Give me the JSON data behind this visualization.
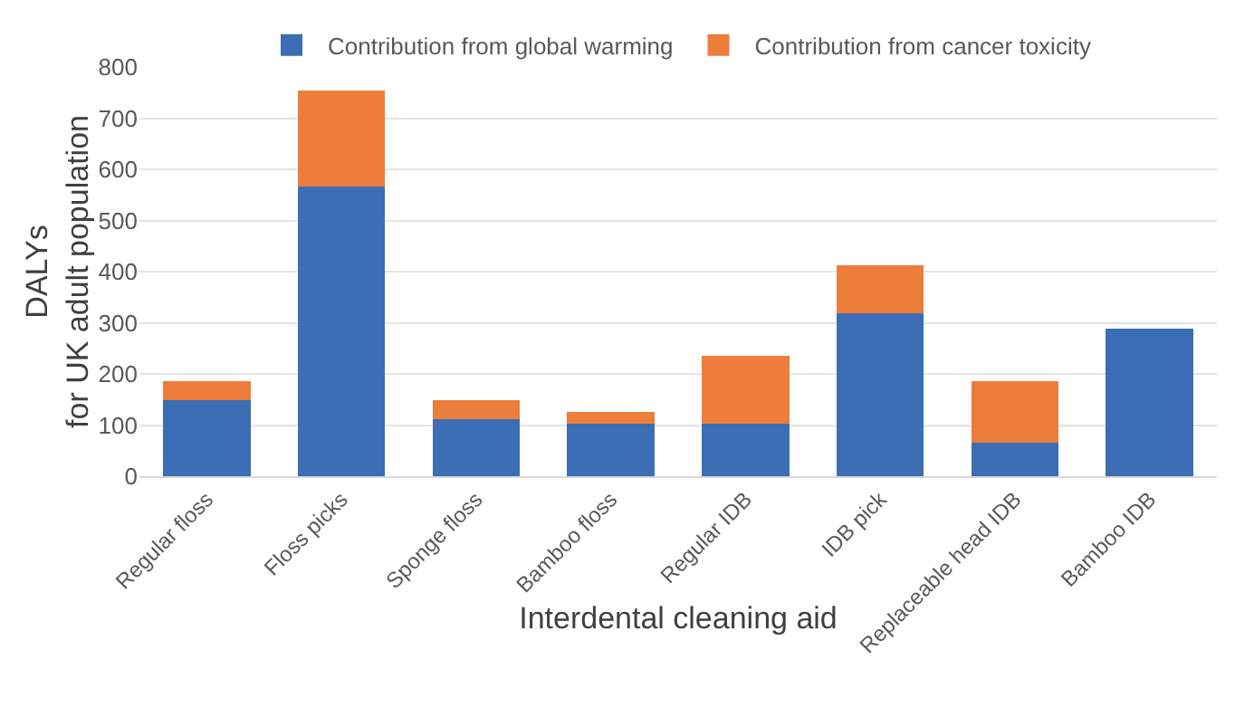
{
  "chart_data": {
    "type": "bar",
    "stacked": true,
    "xlabel": "Interdental cleaning aid",
    "ylabel": "DALYs\nfor UK adult population",
    "categories": [
      "Regular floss",
      "Floss picks",
      "Sponge floss",
      "Bamboo floss",
      "Regular IDB",
      "IDB pick",
      "Replaceable head IDB",
      "Bamboo IDB"
    ],
    "series": [
      {
        "name": "Contribution from global warming",
        "color": "#3b6eb4",
        "values": [
          148,
          566,
          111,
          102,
          102,
          318,
          66,
          288
        ]
      },
      {
        "name": "Contribution from cancer toxicity",
        "color": "#ed7d3a",
        "values": [
          38,
          188,
          37,
          23,
          133,
          94,
          120,
          0
        ]
      }
    ],
    "ylim": [
      0,
      800
    ],
    "yticks": [
      0,
      100,
      200,
      300,
      400,
      500,
      600,
      700,
      800
    ],
    "grid": "y",
    "legend": "top"
  }
}
